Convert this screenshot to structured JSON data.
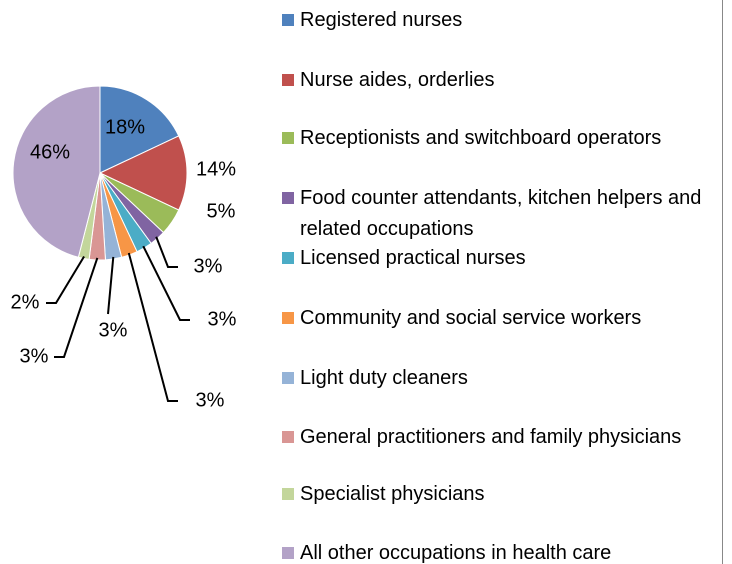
{
  "chart_data": {
    "type": "pie",
    "categories": [
      "Registered nurses",
      "Nurse aides, orderlies",
      "Receptionists and switchboard operators",
      "Food counter attendants, kitchen helpers and related occupations",
      "Licensed practical nurses",
      "Community and social service workers",
      "Light duty cleaners",
      "General practitioners and family physicians",
      "Specialist physicians",
      "All other occupations in health care"
    ],
    "values": [
      18,
      14,
      5,
      3,
      3,
      3,
      3,
      3,
      2,
      46
    ],
    "value_labels": [
      "18%",
      "14%",
      "5%",
      "3%",
      "3%",
      "3%",
      "3%",
      "3%",
      "2%",
      "46%"
    ],
    "colors": [
      "#4f81bd",
      "#c0504d",
      "#9bbb59",
      "#8064a2",
      "#4bacc6",
      "#f79646",
      "#95b3d7",
      "#d99694",
      "#c3d69b",
      "#b3a2c7"
    ],
    "legend": "right"
  }
}
